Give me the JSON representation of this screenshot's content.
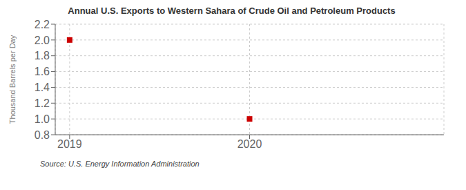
{
  "chart_data": {
    "type": "scatter",
    "title": "Annual U.S. Exports to Western Sahara of Crude Oil and Petroleum Products",
    "y_label": "Thousand Barrels per Day",
    "annotations": [
      "Source: U.S. Energy Information Administration"
    ],
    "x": [
      2019,
      2020
    ],
    "values": [
      2.0,
      1.0
    ],
    "color": "#cc0000",
    "marker": "square",
    "xlim": [
      2018.92,
      2021.08
    ],
    "ylim": [
      0.8,
      2.2
    ],
    "xticks": [
      2019,
      2020
    ],
    "yticks": [
      0.8,
      {
        "value": 1,
        "label": "1.0"
      },
      1.2,
      1.4,
      1.6,
      1.8,
      {
        "value": 2,
        "label": "2.0"
      },
      2.2
    ],
    "grid": true
  }
}
